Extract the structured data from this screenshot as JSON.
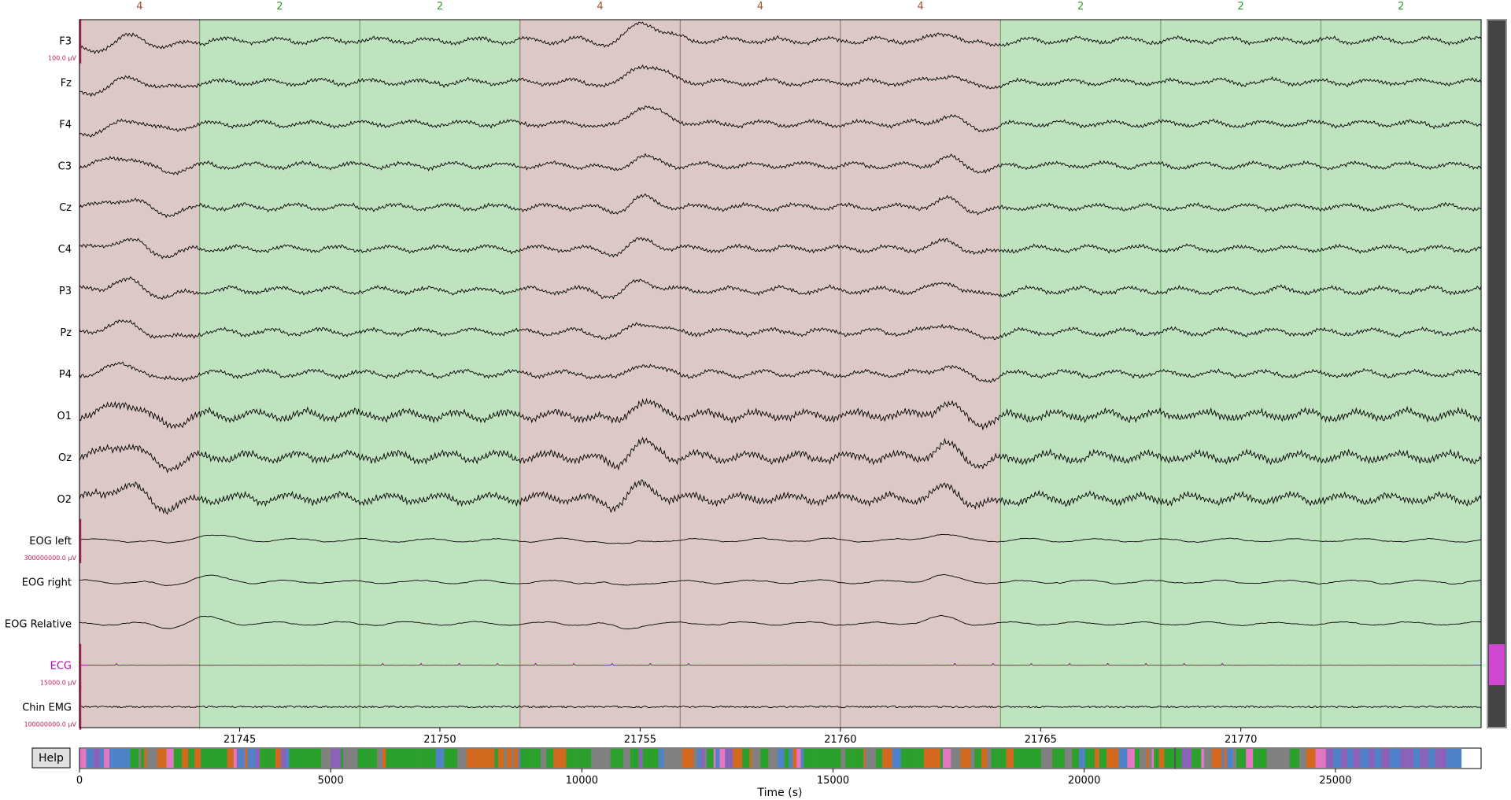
{
  "colors": {
    "trace": "#000000",
    "ecg_trace": "#c000c0",
    "scale_bar": "#c11b5b",
    "stage4_fill": "#dcc9c7",
    "stage4_text": "#a0522d",
    "stage4_border": "#9c7a6e",
    "stage2_fill": "#c0e3bf",
    "stage2_text": "#2ca02c",
    "stage2_border": "#6aa86a",
    "vscroll_track": "#444444",
    "vscroll_thumb": "#d048d0",
    "overview": [
      "#2ca02c",
      "#d2691e",
      "#808080",
      "#4f82c9",
      "#e377c2",
      "#8a63b8"
    ]
  },
  "segments": [
    {
      "stage": "4",
      "start": 21741.0,
      "end": 21744.0
    },
    {
      "stage": "2",
      "start": 21744.0,
      "end": 21748.0
    },
    {
      "stage": "2",
      "start": 21748.0,
      "end": 21752.0
    },
    {
      "stage": "4",
      "start": 21752.0,
      "end": 21756.0
    },
    {
      "stage": "4",
      "start": 21756.0,
      "end": 21760.0
    },
    {
      "stage": "4",
      "start": 21760.0,
      "end": 21764.0
    },
    {
      "stage": "2",
      "start": 21764.0,
      "end": 21768.0
    },
    {
      "stage": "2",
      "start": 21768.0,
      "end": 21772.0
    },
    {
      "stage": "2",
      "start": 21772.0,
      "end": 21776.0
    }
  ],
  "channels": [
    {
      "name": "F3",
      "type": "eeg",
      "scale": "100.0 µV"
    },
    {
      "name": "Fz",
      "type": "eeg"
    },
    {
      "name": "F4",
      "type": "eeg"
    },
    {
      "name": "C3",
      "type": "eeg"
    },
    {
      "name": "Cz",
      "type": "eeg"
    },
    {
      "name": "C4",
      "type": "eeg"
    },
    {
      "name": "P3",
      "type": "eeg"
    },
    {
      "name": "Pz",
      "type": "eeg"
    },
    {
      "name": "P4",
      "type": "eeg"
    },
    {
      "name": "O1",
      "type": "eeg"
    },
    {
      "name": "Oz",
      "type": "eeg"
    },
    {
      "name": "O2",
      "type": "eeg"
    },
    {
      "name": "EOG left",
      "type": "eog",
      "scale": "300000000.0 µV"
    },
    {
      "name": "EOG right",
      "type": "eog"
    },
    {
      "name": "EOG Relative",
      "type": "eog"
    },
    {
      "name": "ECG",
      "type": "ecg",
      "scale": "15000.0 µV"
    },
    {
      "name": "Chin EMG",
      "type": "emg",
      "scale": "100000000.0 µV"
    }
  ],
  "time_axis": {
    "start": 21741.0,
    "end": 21771.0,
    "ticks": [
      "21745",
      "21750",
      "21755",
      "21760",
      "21765",
      "21770"
    ]
  },
  "overview_axis": {
    "xlabel": "Time (s)",
    "max": 27900,
    "data_end": 27400,
    "ticks": [
      "0",
      "5000",
      "10000",
      "15000",
      "20000",
      "25000"
    ]
  },
  "help": {
    "label": "Help"
  }
}
